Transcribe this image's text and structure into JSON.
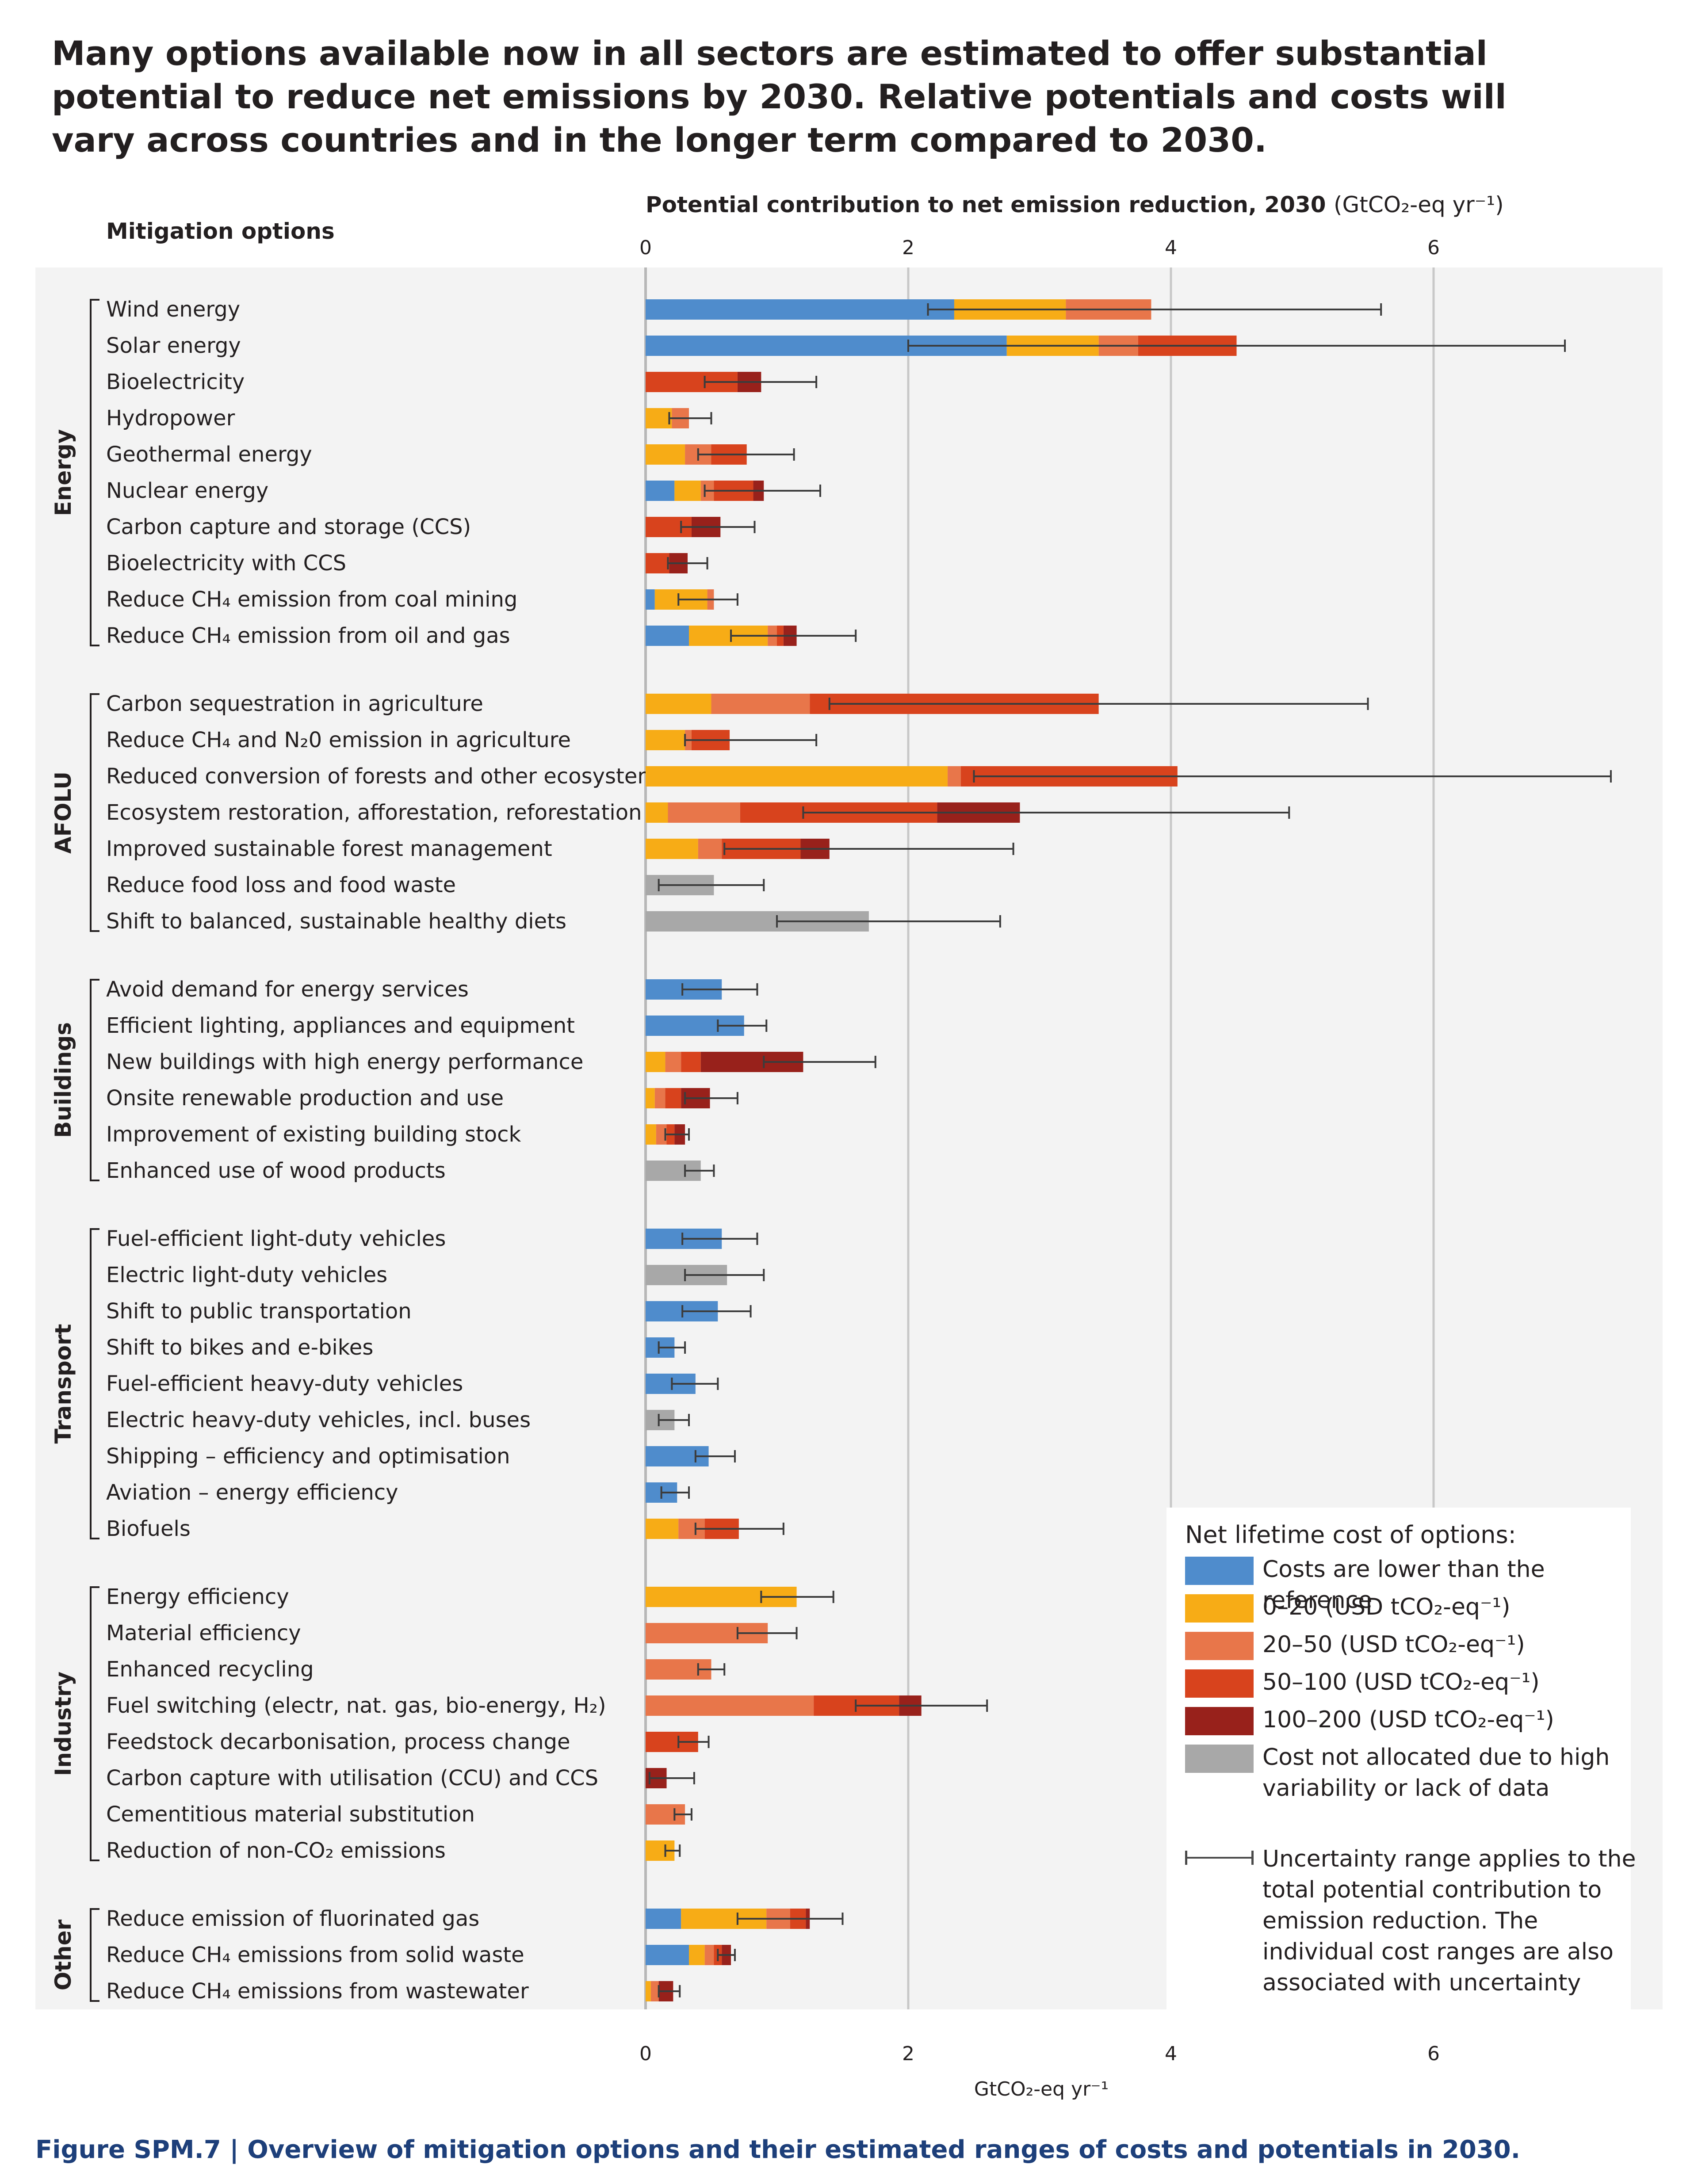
{
  "headline": "Many options available now in all sectors are estimated to offer substantial potential to reduce net emissions by 2030. Relative potentials and costs will vary across countries and in the longer term compared to 2030.",
  "caption": {
    "figure_label": "Figure SPM.7 |",
    "text": "Overview of mitigation options and their estimated ranges of costs and potentials in 2030."
  },
  "legend": {
    "title": "Net lifetime cost of options:",
    "items": [
      {
        "key": "lower",
        "color": "#4f8ccc",
        "label": "Costs are lower than the reference"
      },
      {
        "key": "c0_20",
        "color": "#f7ac16",
        "label": "0–20 (USD tCO₂-eq⁻¹)"
      },
      {
        "key": "c20_50",
        "color": "#e8764a",
        "label": "20–50 (USD tCO₂-eq⁻¹)"
      },
      {
        "key": "c50_100",
        "color": "#d8431d",
        "label": "50–100 (USD tCO₂-eq⁻¹)"
      },
      {
        "key": "c100_200",
        "color": "#98211b",
        "label": "100–200 (USD tCO₂-eq⁻¹)"
      },
      {
        "key": "na",
        "color": "#a8a8a8",
        "label": "Cost not allocated due to high variability or lack of data"
      }
    ],
    "uncertainty_label": "Uncertainty range applies to the total potential contribution to emission reduction. The individual cost ranges are also associated with uncertainty"
  },
  "chart_data": {
    "type": "bar",
    "orientation": "horizontal",
    "stacked": true,
    "title": "Potential contribution to net emission reduction, 2030",
    "title_units": "(GtCO₂-eq yr⁻¹)",
    "category_header": "Mitigation options",
    "xlabel": "GtCO₂-eq yr⁻¹",
    "xlim": [
      0,
      7.4
    ],
    "xticks": [
      0,
      2,
      4,
      6
    ],
    "grid": true,
    "stack_order": [
      "lower",
      "c0_20",
      "c20_50",
      "c50_100",
      "c100_200",
      "na"
    ],
    "groups": [
      {
        "name": "Energy",
        "options": [
          {
            "label": "Wind energy",
            "segments": {
              "lower": 2.35,
              "c0_20": 0.85,
              "c20_50": 0.65
            },
            "range": [
              2.15,
              5.6
            ]
          },
          {
            "label": "Solar energy",
            "segments": {
              "lower": 2.75,
              "c0_20": 0.7,
              "c20_50": 0.3,
              "c50_100": 0.75
            },
            "range": [
              2.0,
              7.0
            ]
          },
          {
            "label": "Bioelectricity",
            "segments": {
              "c50_100": 0.7,
              "c100_200": 0.18
            },
            "range": [
              0.45,
              1.3
            ]
          },
          {
            "label": "Hydropower",
            "segments": {
              "c0_20": 0.2,
              "c20_50": 0.13
            },
            "range": [
              0.18,
              0.5
            ]
          },
          {
            "label": "Geothermal energy",
            "segments": {
              "c0_20": 0.3,
              "c20_50": 0.2,
              "c50_100": 0.27
            },
            "range": [
              0.4,
              1.13
            ]
          },
          {
            "label": "Nuclear energy",
            "segments": {
              "lower": 0.22,
              "c0_20": 0.2,
              "c20_50": 0.1,
              "c50_100": 0.3,
              "c100_200": 0.08
            },
            "range": [
              0.45,
              1.33
            ]
          },
          {
            "label": "Carbon capture and storage (CCS)",
            "segments": {
              "c50_100": 0.35,
              "c100_200": 0.22
            },
            "range": [
              0.27,
              0.83
            ]
          },
          {
            "label": "Bioelectricity with CCS",
            "segments": {
              "c50_100": 0.18,
              "c100_200": 0.14
            },
            "range": [
              0.17,
              0.47
            ]
          },
          {
            "label": "Reduce CH₄ emission from coal mining",
            "segments": {
              "lower": 0.07,
              "c0_20": 0.4,
              "c20_50": 0.05
            },
            "range": [
              0.25,
              0.7
            ]
          },
          {
            "label": "Reduce CH₄ emission from oil and gas",
            "segments": {
              "lower": 0.33,
              "c0_20": 0.6,
              "c20_50": 0.07,
              "c50_100": 0.05,
              "c100_200": 0.1
            },
            "range": [
              0.65,
              1.6
            ]
          }
        ]
      },
      {
        "name": "AFOLU",
        "options": [
          {
            "label": "Carbon sequestration in agriculture",
            "segments": {
              "c0_20": 0.5,
              "c20_50": 0.75,
              "c50_100": 2.2
            },
            "range": [
              1.4,
              5.5
            ]
          },
          {
            "label": "Reduce CH₄ and N₂0 emission in agriculture",
            "segments": {
              "c0_20": 0.3,
              "c20_50": 0.05,
              "c50_100": 0.29
            },
            "range": [
              0.3,
              1.3
            ]
          },
          {
            "label": "Reduced conversion of forests and other ecosystems",
            "segments": {
              "c0_20": 2.3,
              "c20_50": 0.1,
              "c50_100": 1.65
            },
            "range": [
              2.5,
              7.35
            ]
          },
          {
            "label": "Ecosystem restoration, afforestation, reforestation",
            "segments": {
              "c0_20": 0.17,
              "c20_50": 0.55,
              "c50_100": 1.5,
              "c100_200": 0.63
            },
            "range": [
              1.2,
              4.9
            ]
          },
          {
            "label": "Improved sustainable forest management",
            "segments": {
              "c0_20": 0.4,
              "c20_50": 0.18,
              "c50_100": 0.6,
              "c100_200": 0.22
            },
            "range": [
              0.6,
              2.8
            ]
          },
          {
            "label": "Reduce food loss and food waste",
            "segments": {
              "na": 0.52
            },
            "range": [
              0.1,
              0.9
            ]
          },
          {
            "label": "Shift to balanced, sustainable healthy diets",
            "segments": {
              "na": 1.7
            },
            "range": [
              1.0,
              2.7
            ]
          }
        ]
      },
      {
        "name": "Buildings",
        "options": [
          {
            "label": "Avoid demand for energy services",
            "segments": {
              "lower": 0.58
            },
            "range": [
              0.28,
              0.85
            ]
          },
          {
            "label": "Efficient lighting, appliances and equipment",
            "segments": {
              "lower": 0.75
            },
            "range": [
              0.55,
              0.92
            ]
          },
          {
            "label": "New buildings with high energy performance",
            "segments": {
              "c0_20": 0.15,
              "c20_50": 0.12,
              "c50_100": 0.15,
              "c100_200": 0.78
            },
            "range": [
              0.9,
              1.75
            ]
          },
          {
            "label": "Onsite renewable production and use",
            "segments": {
              "c0_20": 0.07,
              "c20_50": 0.08,
              "c50_100": 0.12,
              "c100_200": 0.22
            },
            "range": [
              0.3,
              0.7
            ]
          },
          {
            "label": "Improvement of existing building stock",
            "segments": {
              "c0_20": 0.08,
              "c20_50": 0.08,
              "c50_100": 0.06,
              "c100_200": 0.08
            },
            "range": [
              0.15,
              0.33
            ]
          },
          {
            "label": "Enhanced use of wood products",
            "segments": {
              "na": 0.42
            },
            "range": [
              0.3,
              0.52
            ]
          }
        ]
      },
      {
        "name": "Transport",
        "options": [
          {
            "label": "Fuel-efficient light-duty vehicles",
            "segments": {
              "lower": 0.58
            },
            "range": [
              0.28,
              0.85
            ]
          },
          {
            "label": "Electric light-duty vehicles",
            "segments": {
              "na": 0.62
            },
            "range": [
              0.3,
              0.9
            ]
          },
          {
            "label": "Shift to public transportation",
            "segments": {
              "lower": 0.55
            },
            "range": [
              0.28,
              0.8
            ]
          },
          {
            "label": "Shift to bikes and e-bikes",
            "segments": {
              "lower": 0.22
            },
            "range": [
              0.1,
              0.3
            ]
          },
          {
            "label": "Fuel-efficient heavy-duty vehicles",
            "segments": {
              "lower": 0.38
            },
            "range": [
              0.2,
              0.55
            ]
          },
          {
            "label": "Electric heavy-duty vehicles, incl. buses",
            "segments": {
              "na": 0.22
            },
            "range": [
              0.1,
              0.33
            ]
          },
          {
            "label": "Shipping – efficiency and optimisation",
            "segments": {
              "lower": 0.48
            },
            "range": [
              0.38,
              0.68
            ]
          },
          {
            "label": "Aviation – energy efficiency",
            "segments": {
              "lower": 0.24
            },
            "range": [
              0.12,
              0.33
            ]
          },
          {
            "label": "Biofuels",
            "segments": {
              "c0_20": 0.25,
              "c20_50": 0.2,
              "c50_100": 0.26
            },
            "range": [
              0.38,
              1.05
            ]
          }
        ]
      },
      {
        "name": "Industry",
        "options": [
          {
            "label": "Energy efficiency",
            "segments": {
              "c0_20": 1.15
            },
            "range": [
              0.88,
              1.43
            ]
          },
          {
            "label": "Material efficiency",
            "segments": {
              "c20_50": 0.93
            },
            "range": [
              0.7,
              1.15
            ]
          },
          {
            "label": "Enhanced recycling",
            "segments": {
              "c20_50": 0.5
            },
            "range": [
              0.4,
              0.6
            ]
          },
          {
            "label": "Fuel switching (electr, nat. gas, bio-energy, H₂)",
            "segments": {
              "c20_50": 1.28,
              "c50_100": 0.65,
              "c100_200": 0.17
            },
            "range": [
              1.6,
              2.6
            ]
          },
          {
            "label": "Feedstock decarbonisation, process change",
            "segments": {
              "c50_100": 0.4
            },
            "range": [
              0.25,
              0.48
            ]
          },
          {
            "label": "Carbon capture with utilisation (CCU) and CCS",
            "segments": {
              "c100_200": 0.16
            },
            "range": [
              0.03,
              0.37
            ]
          },
          {
            "label": "Cementitious material substitution",
            "segments": {
              "c20_50": 0.3
            },
            "range": [
              0.22,
              0.35
            ]
          },
          {
            "label": "Reduction of non-CO₂ emissions",
            "segments": {
              "c0_20": 0.22
            },
            "range": [
              0.15,
              0.26
            ]
          }
        ]
      },
      {
        "name": "Other",
        "options": [
          {
            "label": "Reduce emission of fluorinated gas",
            "segments": {
              "lower": 0.27,
              "c0_20": 0.65,
              "c20_50": 0.18,
              "c50_100": 0.12,
              "c100_200": 0.03
            },
            "range": [
              0.7,
              1.5
            ]
          },
          {
            "label": "Reduce CH₄ emissions from solid waste",
            "segments": {
              "lower": 0.33,
              "c0_20": 0.12,
              "c20_50": 0.07,
              "c50_100": 0.06,
              "c100_200": 0.07
            },
            "range": [
              0.55,
              0.68
            ]
          },
          {
            "label": "Reduce CH₄ emissions from wastewater",
            "segments": {
              "c0_20": 0.04,
              "c20_50": 0.06,
              "c100_200": 0.11
            },
            "range": [
              0.1,
              0.26
            ]
          }
        ]
      }
    ]
  }
}
